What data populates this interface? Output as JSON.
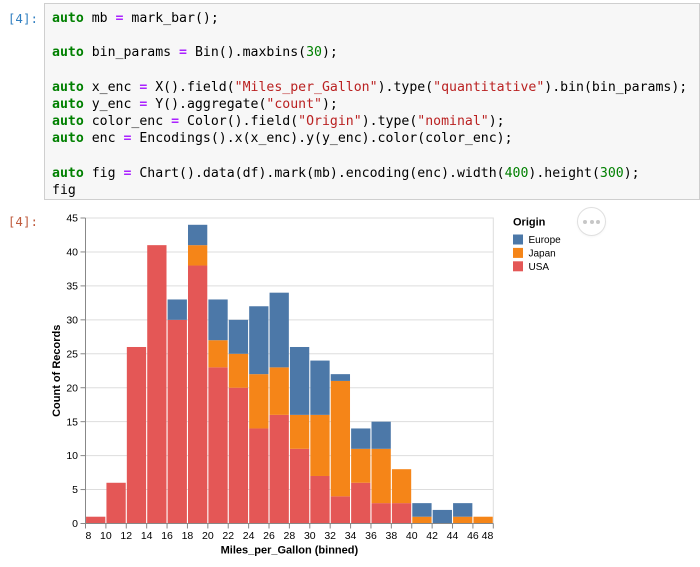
{
  "notebook": {
    "input_cell": {
      "prompt": "[4]:",
      "prompt_color": "#307FC1",
      "language": "C++",
      "code_lines": [
        [
          {
            "c": "k",
            "x": "auto"
          },
          {
            "c": "t",
            "x": " mb "
          },
          {
            "c": "o",
            "x": "="
          },
          {
            "c": "t",
            "x": " mark_bar();"
          }
        ],
        [],
        [
          {
            "c": "k",
            "x": "auto"
          },
          {
            "c": "t",
            "x": " bin_params "
          },
          {
            "c": "o",
            "x": "="
          },
          {
            "c": "t",
            "x": " Bin().maxbins("
          },
          {
            "c": "n",
            "x": "30"
          },
          {
            "c": "t",
            "x": ");"
          }
        ],
        [],
        [
          {
            "c": "k",
            "x": "auto"
          },
          {
            "c": "t",
            "x": " x_enc "
          },
          {
            "c": "o",
            "x": "="
          },
          {
            "c": "t",
            "x": " X().field("
          },
          {
            "c": "s",
            "x": "\"Miles_per_Gallon\""
          },
          {
            "c": "t",
            "x": ").type("
          },
          {
            "c": "s",
            "x": "\"quantitative\""
          },
          {
            "c": "t",
            "x": ").bin(bin_params);"
          }
        ],
        [
          {
            "c": "k",
            "x": "auto"
          },
          {
            "c": "t",
            "x": " y_enc "
          },
          {
            "c": "o",
            "x": "="
          },
          {
            "c": "t",
            "x": " Y().aggregate("
          },
          {
            "c": "s",
            "x": "\"count\""
          },
          {
            "c": "t",
            "x": ");"
          }
        ],
        [
          {
            "c": "k",
            "x": "auto"
          },
          {
            "c": "t",
            "x": " color_enc "
          },
          {
            "c": "o",
            "x": "="
          },
          {
            "c": "t",
            "x": " Color().field("
          },
          {
            "c": "s",
            "x": "\"Origin\""
          },
          {
            "c": "t",
            "x": ").type("
          },
          {
            "c": "s",
            "x": "\"nominal\""
          },
          {
            "c": "t",
            "x": ");"
          }
        ],
        [
          {
            "c": "k",
            "x": "auto"
          },
          {
            "c": "t",
            "x": " enc "
          },
          {
            "c": "o",
            "x": "="
          },
          {
            "c": "t",
            "x": " Encodings().x(x_enc).y(y_enc).color(color_enc);"
          }
        ],
        [],
        [
          {
            "c": "k",
            "x": "auto"
          },
          {
            "c": "t",
            "x": " fig "
          },
          {
            "c": "o",
            "x": "="
          },
          {
            "c": "t",
            "x": " Chart().data(df).mark(mb).encoding(enc).width("
          },
          {
            "c": "n",
            "x": "400"
          },
          {
            "c": "t",
            "x": ").height("
          },
          {
            "c": "n",
            "x": "300"
          },
          {
            "c": "t",
            "x": ");"
          }
        ],
        [
          {
            "c": "t",
            "x": "fig"
          }
        ]
      ],
      "syntax_colors": {
        "keyword": "#008000",
        "operator": "#AA22FF",
        "string": "#BA2121",
        "number": "#008000",
        "text": "#000000"
      },
      "editor_background": "#f7f7f7",
      "editor_border": "#cfcfcf"
    },
    "output_cell": {
      "prompt": "[4]:",
      "prompt_color": "#BF5B3D",
      "actions_button": "vega-embed-options-menu"
    }
  },
  "chart_data": {
    "type": "bar",
    "stacked": true,
    "title": "",
    "xlabel": "Miles_per_Gallon (binned)",
    "ylabel": "Count of Records",
    "bin_start": 8,
    "bin_step": 2,
    "categories": [
      8,
      10,
      12,
      14,
      16,
      18,
      20,
      22,
      24,
      26,
      28,
      30,
      32,
      34,
      36,
      38,
      40,
      42,
      44,
      46
    ],
    "series": [
      {
        "name": "USA",
        "color": "#e45756",
        "values": [
          1,
          6,
          26,
          41,
          30,
          38,
          23,
          20,
          14,
          16,
          11,
          7,
          4,
          6,
          3,
          3,
          0,
          0,
          0,
          0
        ]
      },
      {
        "name": "Japan",
        "color": "#f58518",
        "values": [
          0,
          0,
          0,
          0,
          0,
          3,
          4,
          5,
          8,
          7,
          5,
          9,
          17,
          5,
          8,
          5,
          1,
          0,
          1,
          1
        ]
      },
      {
        "name": "Europe",
        "color": "#4c78a8",
        "values": [
          0,
          0,
          0,
          0,
          3,
          3,
          6,
          5,
          10,
          11,
          10,
          8,
          1,
          3,
          4,
          0,
          2,
          2,
          2,
          0
        ]
      }
    ],
    "xlim": [
      8,
      48
    ],
    "ylim": [
      0,
      45
    ],
    "xticks": [
      8,
      10,
      12,
      14,
      16,
      18,
      20,
      22,
      24,
      26,
      28,
      30,
      32,
      34,
      36,
      38,
      40,
      42,
      44,
      46,
      48
    ],
    "yticks": [
      0,
      5,
      10,
      15,
      20,
      25,
      30,
      35,
      40,
      45
    ],
    "grid": "horizontal",
    "legend_title": "Origin",
    "legend_entries": [
      "Europe",
      "Japan",
      "USA"
    ],
    "legend_position": "right",
    "colors": {
      "grid": "#dddddd",
      "axis": "#888888",
      "label": "#000000",
      "view_border": "#dddddd"
    }
  }
}
